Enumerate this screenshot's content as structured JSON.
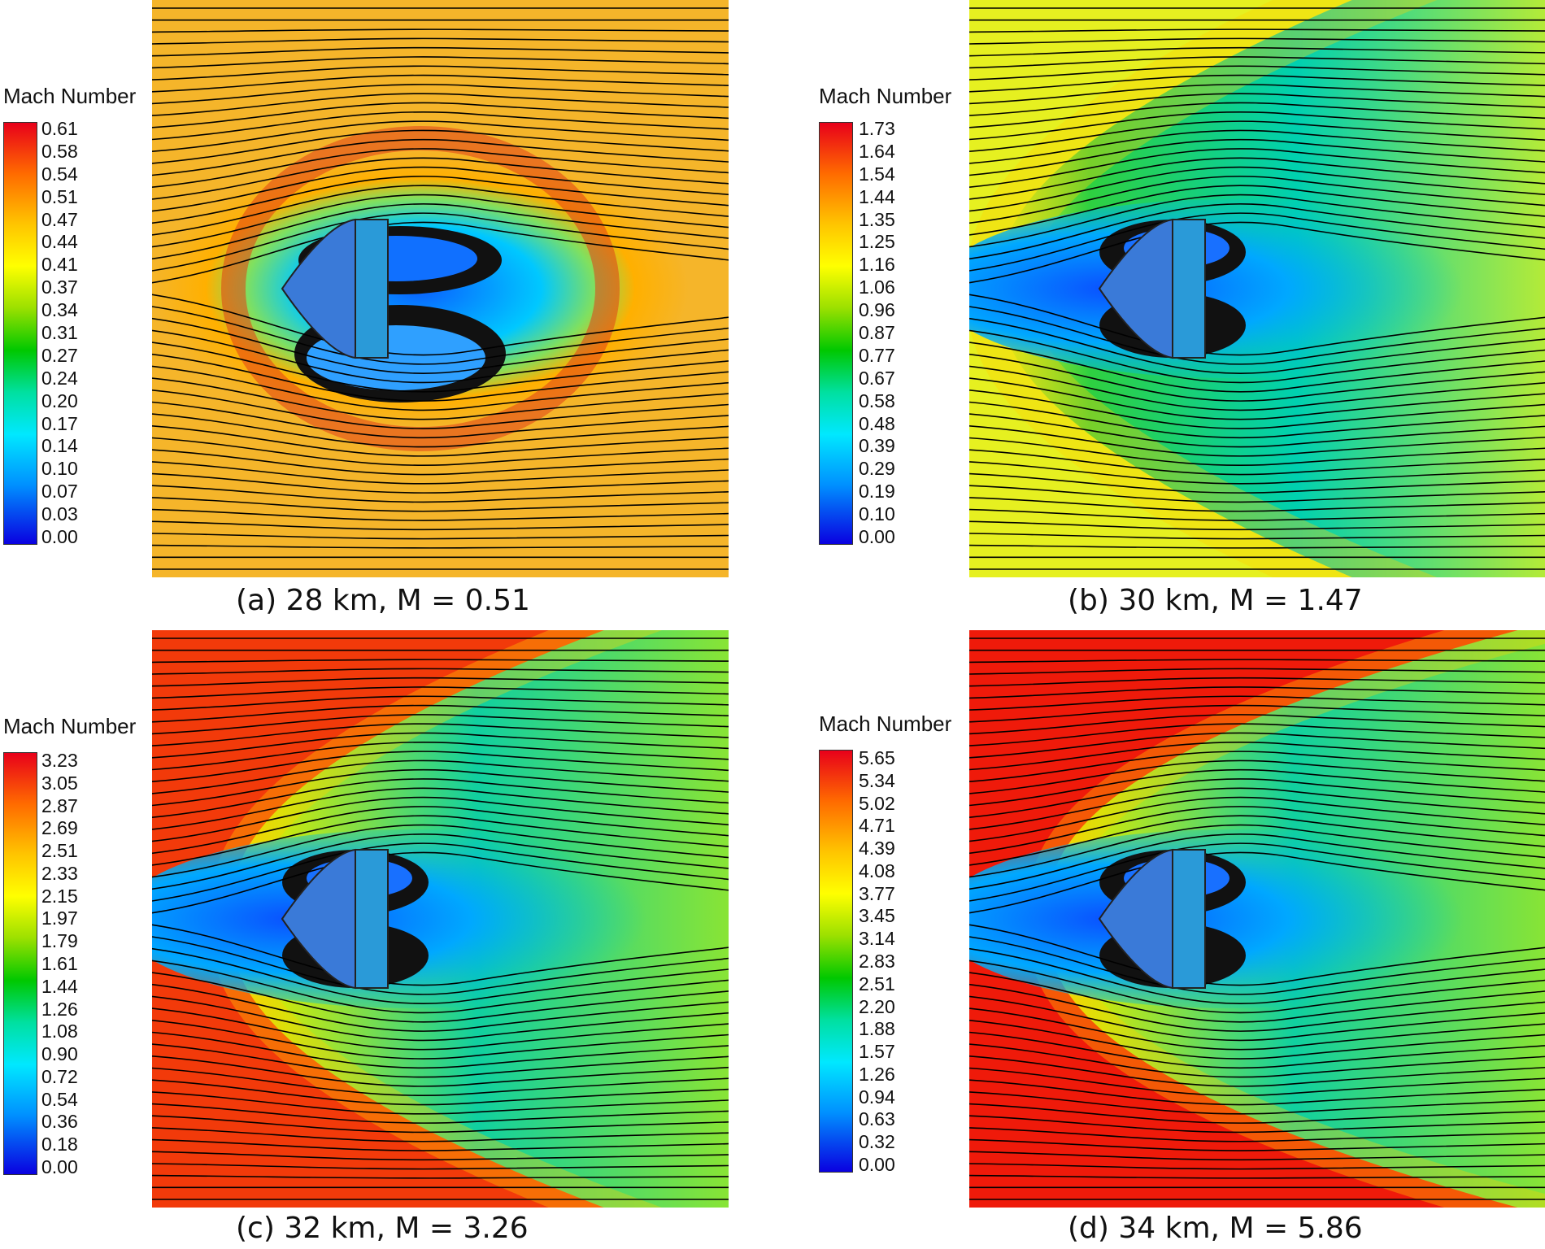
{
  "panels": [
    {
      "id": "a",
      "legend_title": "Mach Number",
      "ticks": [
        "0.61",
        "0.58",
        "0.54",
        "0.51",
        "0.47",
        "0.44",
        "0.41",
        "0.37",
        "0.34",
        "0.31",
        "0.27",
        "0.24",
        "0.20",
        "0.17",
        "0.14",
        "0.10",
        "0.07",
        "0.03",
        "0.00"
      ],
      "caption": "(a) 28 km, M = 0.51",
      "freestream_color": "#f5b52a",
      "regime": "subsonic"
    },
    {
      "id": "b",
      "legend_title": "Mach Number",
      "ticks": [
        "1.73",
        "1.64",
        "1.54",
        "1.44",
        "1.35",
        "1.25",
        "1.16",
        "1.06",
        "0.96",
        "0.87",
        "0.77",
        "0.67",
        "0.58",
        "0.48",
        "0.39",
        "0.29",
        "0.19",
        "0.10",
        "0.00"
      ],
      "caption": "(b) 30 km, M = 1.47",
      "freestream_color": "#e6f020",
      "regime": "transonic"
    },
    {
      "id": "c",
      "legend_title": "Mach Number",
      "ticks": [
        "3.23",
        "3.05",
        "2.87",
        "2.69",
        "2.51",
        "2.33",
        "2.15",
        "1.97",
        "1.79",
        "1.61",
        "1.44",
        "1.26",
        "1.08",
        "0.90",
        "0.72",
        "0.54",
        "0.36",
        "0.18",
        "0.00"
      ],
      "caption": "(c) 32 km, M = 3.26",
      "freestream_color": "#f23a0a",
      "regime": "supersonic"
    },
    {
      "id": "d",
      "legend_title": "Mach Number",
      "ticks": [
        "5.65",
        "5.34",
        "5.02",
        "4.71",
        "4.39",
        "4.08",
        "3.77",
        "3.45",
        "3.14",
        "2.83",
        "2.51",
        "2.20",
        "1.88",
        "1.57",
        "1.26",
        "0.94",
        "0.63",
        "0.32",
        "0.00"
      ],
      "caption": "(d) 34 km, M = 5.86",
      "freestream_color": "#ef1a0a",
      "regime": "hypersonic"
    }
  ]
}
